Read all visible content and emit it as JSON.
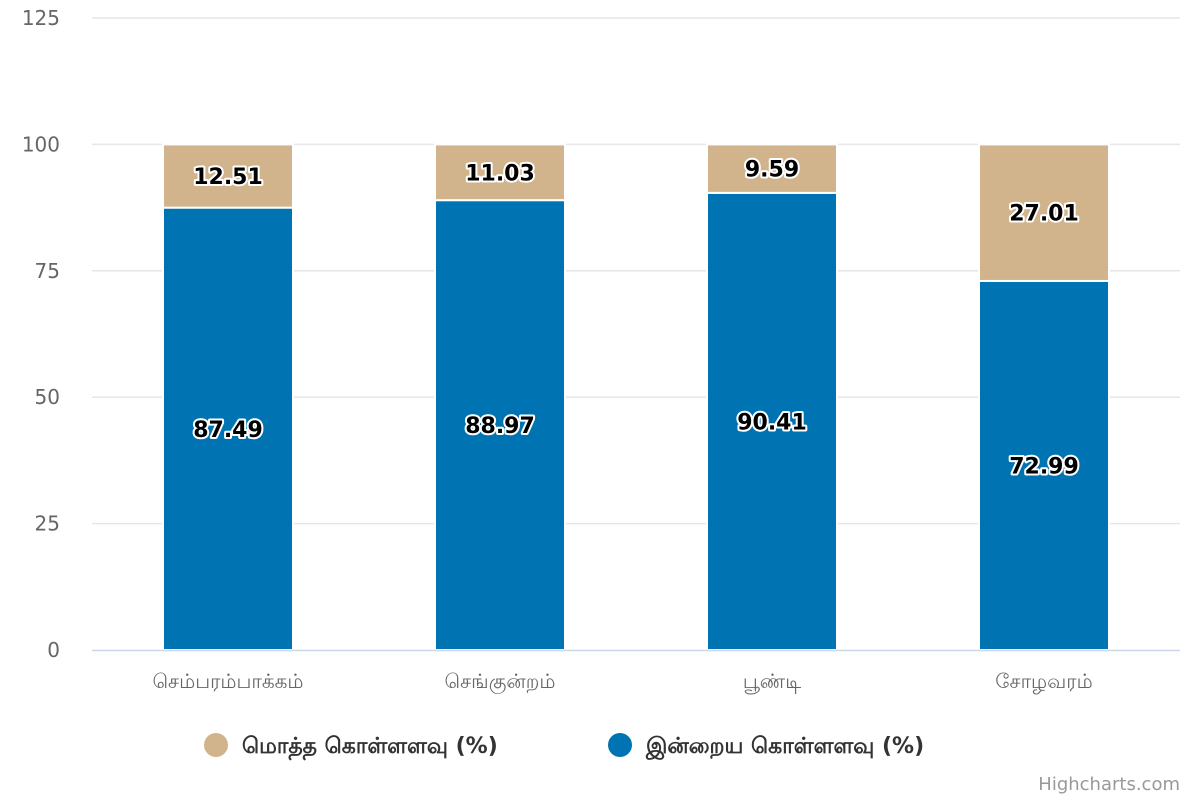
{
  "chart_data": {
    "type": "bar",
    "stacked": true,
    "categories": [
      "செம்பரம்பாக்கம்",
      "செங்குன்றம்",
      "பூண்டி",
      "சோழவரம்"
    ],
    "series": [
      {
        "name": "மொத்த கொள்ளளவு (%)",
        "color": "#d2b48c",
        "values": [
          12.51,
          11.03,
          9.59,
          27.01
        ]
      },
      {
        "name": "இன்றைய கொள்ளளவு (%)",
        "color": "#0074b3",
        "values": [
          87.49,
          88.97,
          90.41,
          72.99
        ]
      }
    ],
    "ylim": [
      0,
      125
    ],
    "yticks": [
      "0",
      "25",
      "50",
      "75",
      "100",
      "125"
    ],
    "grid": true,
    "legend_position": "bottom-center"
  },
  "credits": "Highcharts.com",
  "colors": {
    "grid": "#e6e6e6",
    "axis": "#ccd6eb"
  }
}
